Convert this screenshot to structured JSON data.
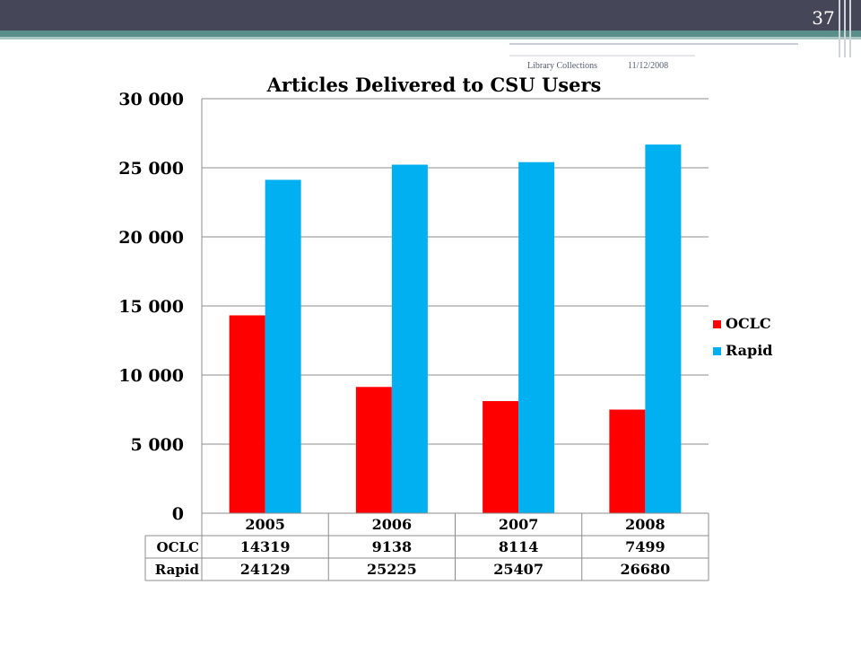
{
  "slide": {
    "number": "37",
    "footer_left": "Library Collections",
    "footer_right": "11/12/2008"
  },
  "colors": {
    "header_bar": "#454657",
    "accent_teal": "#5a8e8a",
    "series": [
      "#ff0000",
      "#00b0f0"
    ]
  },
  "chart_data": {
    "type": "bar",
    "title": "Articles Delivered to CSU Users",
    "categories": [
      "2005",
      "2006",
      "2007",
      "2008"
    ],
    "series": [
      {
        "name": "OCLC",
        "values": [
          14319,
          9138,
          8114,
          7499
        ]
      },
      {
        "name": "Rapid",
        "values": [
          24129,
          25225,
          25407,
          26680
        ]
      }
    ],
    "ylim": [
      0,
      30000
    ],
    "yticks": [
      0,
      5000,
      10000,
      15000,
      20000,
      25000,
      30000
    ],
    "ytick_labels": [
      "0",
      "5 000",
      "10 000",
      "15 000",
      "20 000",
      "25 000",
      "30 000"
    ],
    "grid": true,
    "legend": "right",
    "data_table": true
  }
}
